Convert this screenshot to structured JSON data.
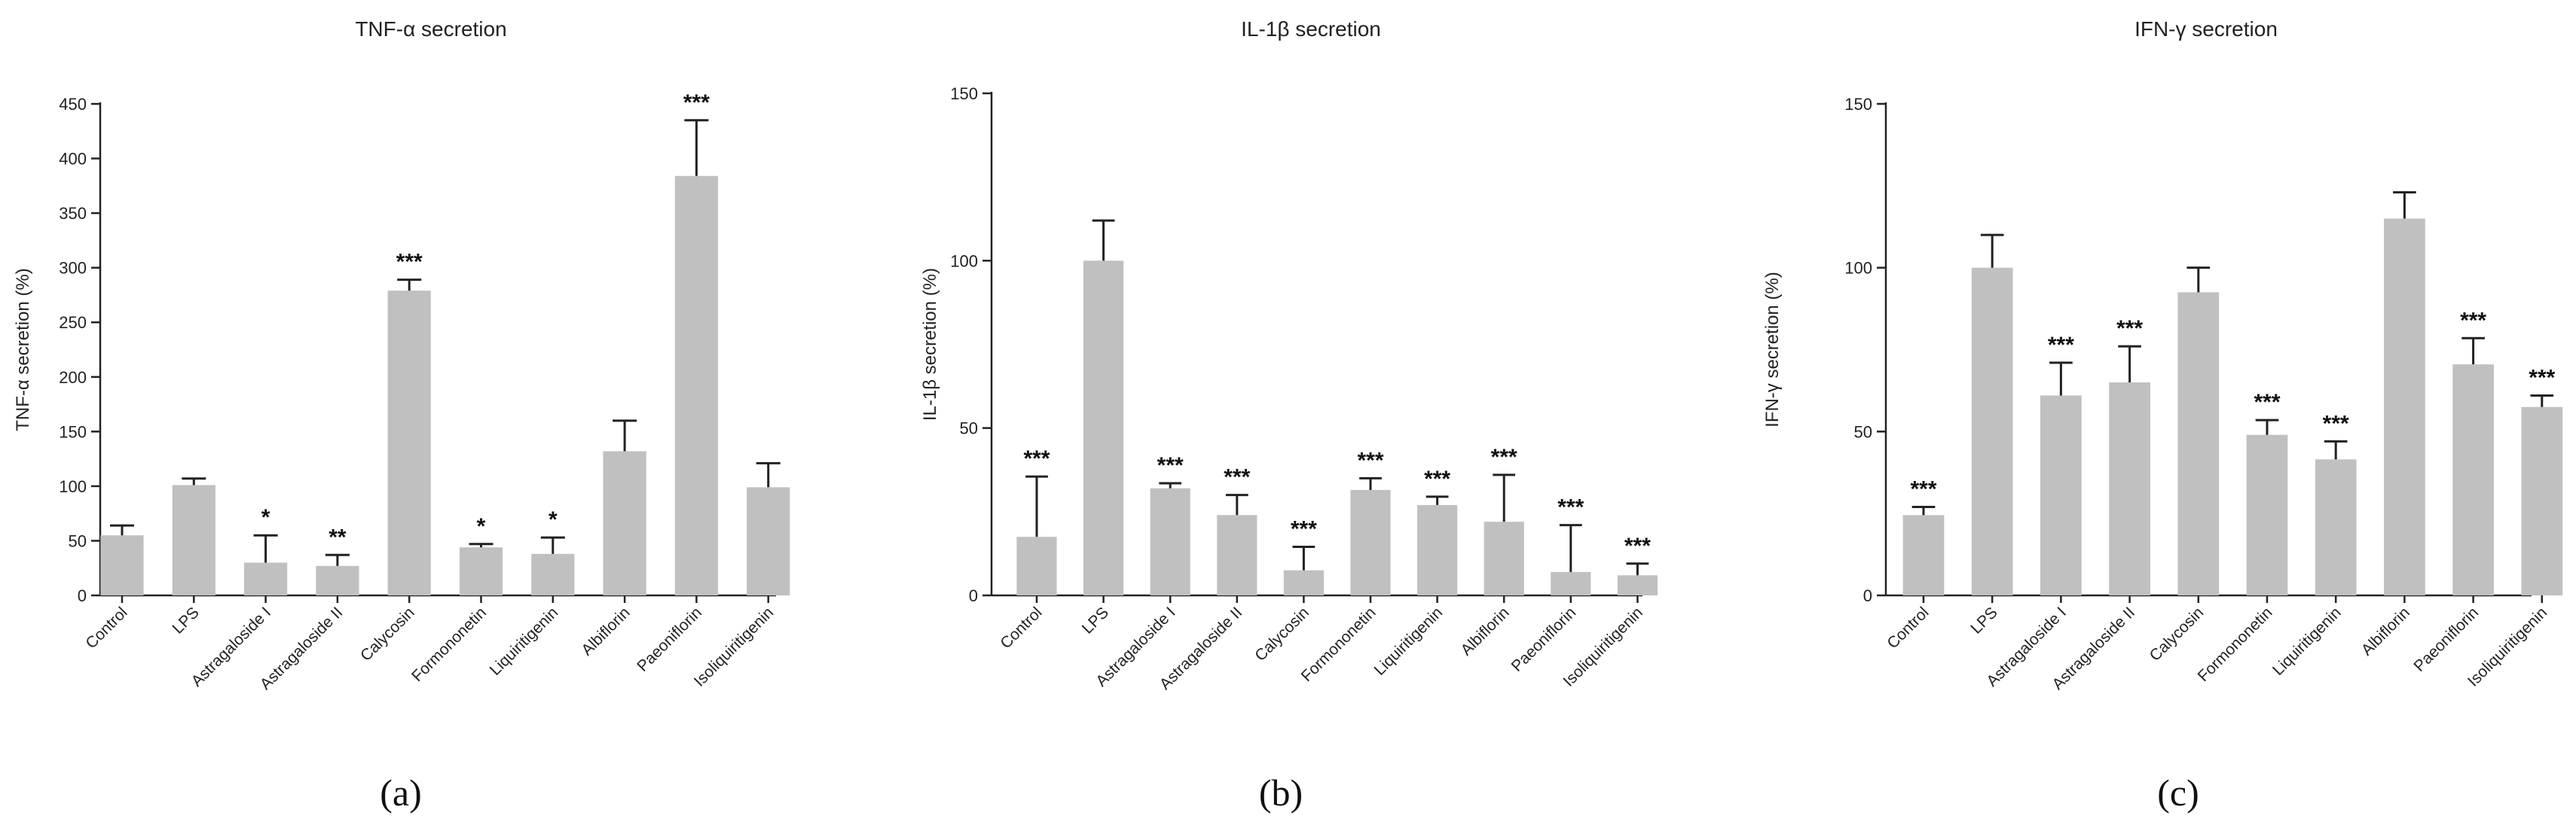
{
  "chart_data": [
    {
      "type": "bar",
      "panel": "(a)",
      "title": "TNF-α secretion",
      "xlabel": "",
      "ylabel": "TNF-α secretion (%)",
      "ylim": [
        0,
        450
      ],
      "yticks": [
        0,
        50,
        100,
        150,
        200,
        250,
        300,
        350,
        400,
        450
      ],
      "categories": [
        "Control",
        "LPS",
        "Astragaloside I",
        "Astragaloside II",
        "Calycosin",
        "Formononetin",
        "Liquiritigenin",
        "Albiflorin",
        "Paeoniflorin",
        "Isoliquiritigenin"
      ],
      "values": [
        55,
        101,
        30,
        27,
        279,
        44,
        38,
        132,
        384,
        99
      ],
      "errors": [
        9,
        6,
        25,
        10,
        10,
        3,
        15,
        28,
        51,
        22
      ],
      "significance": [
        "",
        "",
        "*",
        "**",
        "***",
        "*",
        "*",
        "",
        "***",
        ""
      ]
    },
    {
      "type": "bar",
      "panel": "(b)",
      "title": "IL-1β secretion",
      "xlabel": "",
      "ylabel": "IL-1β secretion (%)",
      "ylim": [
        0,
        150
      ],
      "yticks": [
        0,
        50,
        100,
        150
      ],
      "categories": [
        "Control",
        "LPS",
        "Astragaloside I",
        "Astragaloside II",
        "Calycosin",
        "Formononetin",
        "Liquiritigenin",
        "Albiflorin",
        "Paeoniflorin",
        "Isoliquiritigenin"
      ],
      "values": [
        17.5,
        100,
        32,
        24,
        7.5,
        31.5,
        27,
        22,
        7,
        6
      ],
      "errors": [
        18,
        12,
        1.5,
        6,
        7,
        3.5,
        2.5,
        14,
        14,
        3.5
      ],
      "significance": [
        "***",
        "",
        "***",
        "***",
        "***",
        "***",
        "***",
        "***",
        "***",
        "***"
      ]
    },
    {
      "type": "bar",
      "panel": "(c)",
      "title": "IFN-γ secretion",
      "xlabel": "",
      "ylabel": "IFN-γ secretion (%)",
      "ylim": [
        0,
        150
      ],
      "yticks": [
        0,
        50,
        100,
        150
      ],
      "categories": [
        "Control",
        "LPS",
        "Astragaloside I",
        "Astragaloside II",
        "Calycosin",
        "Formononetin",
        "Liquiritigenin",
        "Albiflorin",
        "Paeoniflorin",
        "Isoliquiritigenin"
      ],
      "values": [
        24.5,
        100,
        61,
        65,
        92.5,
        49,
        41.5,
        115,
        70.5,
        57.5
      ],
      "errors": [
        2.5,
        10,
        10,
        11,
        7.5,
        4.5,
        5.5,
        8,
        8,
        3.5
      ],
      "significance": [
        "***",
        "",
        "***",
        "***",
        "",
        "***",
        "***",
        "",
        "***",
        "***"
      ]
    }
  ]
}
